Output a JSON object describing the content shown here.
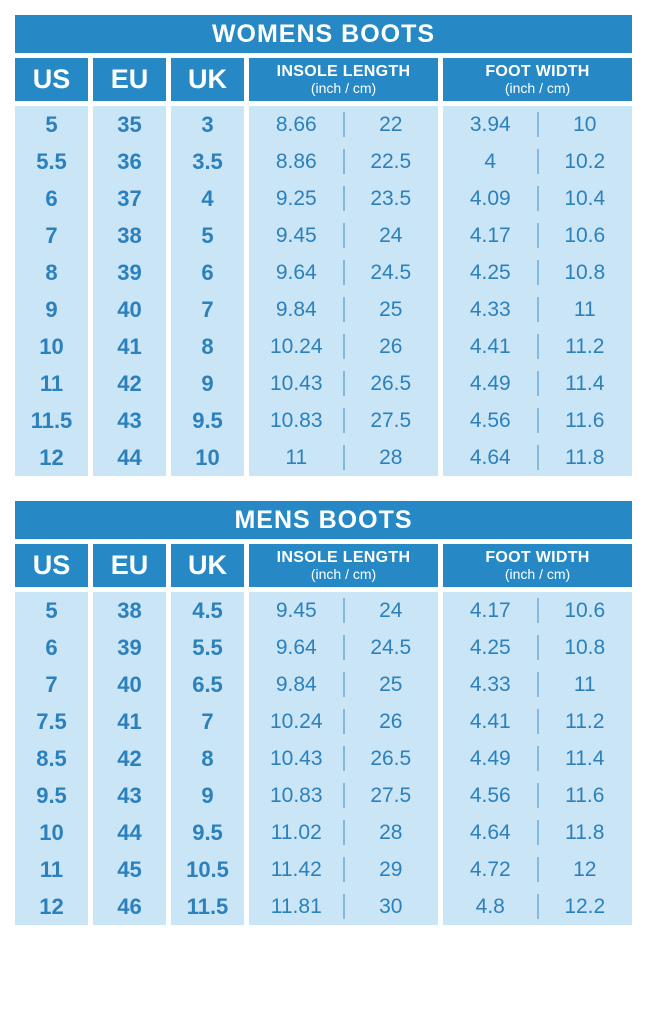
{
  "colors": {
    "header_blue": "#2689C5",
    "cell_light_blue": "#C9E5F6",
    "value_text_blue": "#2C80BC",
    "divider_blue": "#85B9DC",
    "background": "#FFFFFF"
  },
  "tables": [
    {
      "title": "WOMENS BOOTS",
      "headers": {
        "us": "US",
        "eu": "EU",
        "uk": "UK",
        "insole": "INSOLE LENGTH",
        "insole_sub": "(inch / cm)",
        "width": "FOOT WIDTH",
        "width_sub": "(inch / cm)"
      },
      "rows": [
        {
          "us": "5",
          "eu": "35",
          "uk": "3",
          "insole_in": "8.66",
          "insole_cm": "22",
          "width_in": "3.94",
          "width_cm": "10"
        },
        {
          "us": "5.5",
          "eu": "36",
          "uk": "3.5",
          "insole_in": "8.86",
          "insole_cm": "22.5",
          "width_in": "4",
          "width_cm": "10.2"
        },
        {
          "us": "6",
          "eu": "37",
          "uk": "4",
          "insole_in": "9.25",
          "insole_cm": "23.5",
          "width_in": "4.09",
          "width_cm": "10.4"
        },
        {
          "us": "7",
          "eu": "38",
          "uk": "5",
          "insole_in": "9.45",
          "insole_cm": "24",
          "width_in": "4.17",
          "width_cm": "10.6"
        },
        {
          "us": "8",
          "eu": "39",
          "uk": "6",
          "insole_in": "9.64",
          "insole_cm": "24.5",
          "width_in": "4.25",
          "width_cm": "10.8"
        },
        {
          "us": "9",
          "eu": "40",
          "uk": "7",
          "insole_in": "9.84",
          "insole_cm": "25",
          "width_in": "4.33",
          "width_cm": "11"
        },
        {
          "us": "10",
          "eu": "41",
          "uk": "8",
          "insole_in": "10.24",
          "insole_cm": "26",
          "width_in": "4.41",
          "width_cm": "11.2"
        },
        {
          "us": "11",
          "eu": "42",
          "uk": "9",
          "insole_in": "10.43",
          "insole_cm": "26.5",
          "width_in": "4.49",
          "width_cm": "11.4"
        },
        {
          "us": "11.5",
          "eu": "43",
          "uk": "9.5",
          "insole_in": "10.83",
          "insole_cm": "27.5",
          "width_in": "4.56",
          "width_cm": "11.6"
        },
        {
          "us": "12",
          "eu": "44",
          "uk": "10",
          "insole_in": "11",
          "insole_cm": "28",
          "width_in": "4.64",
          "width_cm": "11.8"
        }
      ]
    },
    {
      "title": "MENS BOOTS",
      "headers": {
        "us": "US",
        "eu": "EU",
        "uk": "UK",
        "insole": "INSOLE LENGTH",
        "insole_sub": "(inch / cm)",
        "width": "FOOT WIDTH",
        "width_sub": "(inch / cm)"
      },
      "rows": [
        {
          "us": "5",
          "eu": "38",
          "uk": "4.5",
          "insole_in": "9.45",
          "insole_cm": "24",
          "width_in": "4.17",
          "width_cm": "10.6"
        },
        {
          "us": "6",
          "eu": "39",
          "uk": "5.5",
          "insole_in": "9.64",
          "insole_cm": "24.5",
          "width_in": "4.25",
          "width_cm": "10.8"
        },
        {
          "us": "7",
          "eu": "40",
          "uk": "6.5",
          "insole_in": "9.84",
          "insole_cm": "25",
          "width_in": "4.33",
          "width_cm": "11"
        },
        {
          "us": "7.5",
          "eu": "41",
          "uk": "7",
          "insole_in": "10.24",
          "insole_cm": "26",
          "width_in": "4.41",
          "width_cm": "11.2"
        },
        {
          "us": "8.5",
          "eu": "42",
          "uk": "8",
          "insole_in": "10.43",
          "insole_cm": "26.5",
          "width_in": "4.49",
          "width_cm": "11.4"
        },
        {
          "us": "9.5",
          "eu": "43",
          "uk": "9",
          "insole_in": "10.83",
          "insole_cm": "27.5",
          "width_in": "4.56",
          "width_cm": "11.6"
        },
        {
          "us": "10",
          "eu": "44",
          "uk": "9.5",
          "insole_in": "11.02",
          "insole_cm": "28",
          "width_in": "4.64",
          "width_cm": "11.8"
        },
        {
          "us": "11",
          "eu": "45",
          "uk": "10.5",
          "insole_in": "11.42",
          "insole_cm": "29",
          "width_in": "4.72",
          "width_cm": "12"
        },
        {
          "us": "12",
          "eu": "46",
          "uk": "11.5",
          "insole_in": "11.81",
          "insole_cm": "30",
          "width_in": "4.8",
          "width_cm": "12.2"
        }
      ]
    }
  ],
  "chart_data": [
    {
      "type": "table",
      "title": "WOMENS BOOTS",
      "columns": [
        "US",
        "EU",
        "UK",
        "Insole Length (inch)",
        "Insole Length (cm)",
        "Foot Width (inch)",
        "Foot Width (cm)"
      ],
      "rows": [
        [
          5,
          35,
          3,
          8.66,
          22,
          3.94,
          10
        ],
        [
          5.5,
          36,
          3.5,
          8.86,
          22.5,
          4,
          10.2
        ],
        [
          6,
          37,
          4,
          9.25,
          23.5,
          4.09,
          10.4
        ],
        [
          7,
          38,
          5,
          9.45,
          24,
          4.17,
          10.6
        ],
        [
          8,
          39,
          6,
          9.64,
          24.5,
          4.25,
          10.8
        ],
        [
          9,
          40,
          7,
          9.84,
          25,
          4.33,
          11
        ],
        [
          10,
          41,
          8,
          10.24,
          26,
          4.41,
          11.2
        ],
        [
          11,
          42,
          9,
          10.43,
          26.5,
          4.49,
          11.4
        ],
        [
          11.5,
          43,
          9.5,
          10.83,
          27.5,
          4.56,
          11.6
        ],
        [
          12,
          44,
          10,
          11,
          28,
          4.64,
          11.8
        ]
      ]
    },
    {
      "type": "table",
      "title": "MENS BOOTS",
      "columns": [
        "US",
        "EU",
        "UK",
        "Insole Length (inch)",
        "Insole Length (cm)",
        "Foot Width (inch)",
        "Foot Width (cm)"
      ],
      "rows": [
        [
          5,
          38,
          4.5,
          9.45,
          24,
          4.17,
          10.6
        ],
        [
          6,
          39,
          5.5,
          9.64,
          24.5,
          4.25,
          10.8
        ],
        [
          7,
          40,
          6.5,
          9.84,
          25,
          4.33,
          11
        ],
        [
          7.5,
          41,
          7,
          10.24,
          26,
          4.41,
          11.2
        ],
        [
          8.5,
          42,
          8,
          10.43,
          26.5,
          4.49,
          11.4
        ],
        [
          9.5,
          43,
          9,
          10.83,
          27.5,
          4.56,
          11.6
        ],
        [
          10,
          44,
          9.5,
          11.02,
          28,
          4.64,
          11.8
        ],
        [
          11,
          45,
          10.5,
          11.42,
          29,
          4.72,
          12
        ],
        [
          12,
          46,
          11.5,
          11.81,
          30,
          4.8,
          12.2
        ]
      ]
    }
  ]
}
